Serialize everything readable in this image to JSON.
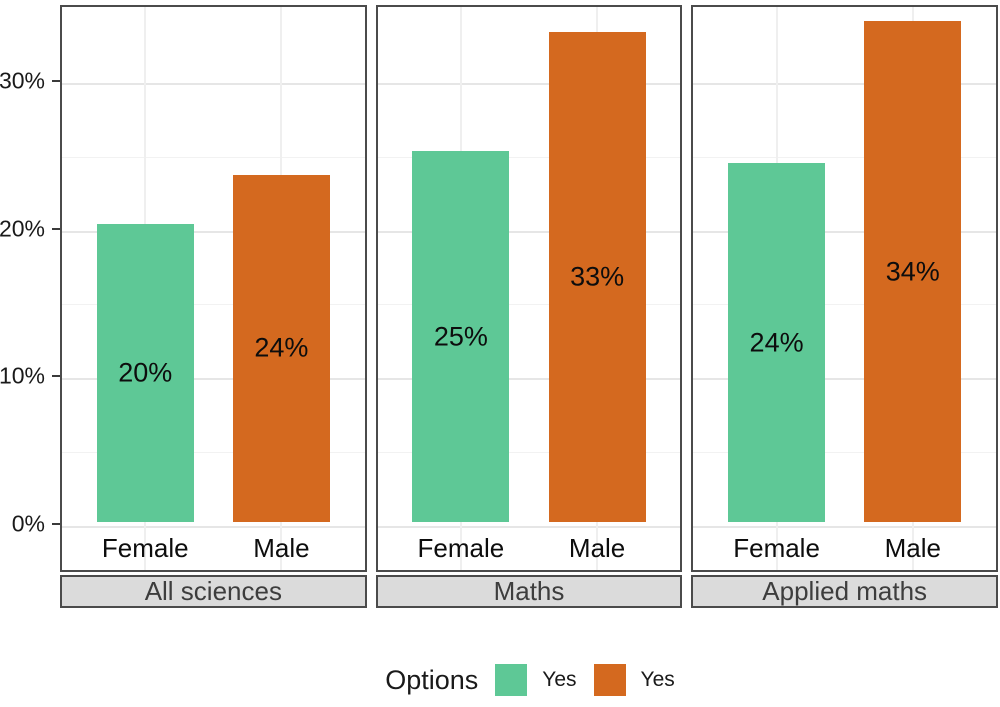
{
  "chart_data": {
    "type": "bar",
    "title": "",
    "categories": [
      "Female",
      "Male"
    ],
    "yticks": [
      {
        "value": 0,
        "label": "0%"
      },
      {
        "value": 10,
        "label": "10%"
      },
      {
        "value": 20,
        "label": "20%"
      },
      {
        "value": 30,
        "label": "30%"
      }
    ],
    "ylim": [
      0,
      35.1
    ],
    "grid": {
      "major_step": 10,
      "minor_step": 5,
      "vertical_at_categories": true
    },
    "facets": [
      {
        "label": "All sciences",
        "bars": [
          {
            "category": "Female",
            "value": 20.2,
            "label": "20%",
            "color": "#5ec896"
          },
          {
            "category": "Male",
            "value": 23.5,
            "label": "24%",
            "color": "#d4691f"
          }
        ]
      },
      {
        "label": "Maths",
        "bars": [
          {
            "category": "Female",
            "value": 25.1,
            "label": "25%",
            "color": "#5ec896"
          },
          {
            "category": "Male",
            "value": 33.2,
            "label": "33%",
            "color": "#d4691f"
          }
        ]
      },
      {
        "label": "Applied maths",
        "bars": [
          {
            "category": "Female",
            "value": 24.3,
            "label": "24%",
            "color": "#5ec896"
          },
          {
            "category": "Male",
            "value": 33.9,
            "label": "34%",
            "color": "#d4691f"
          }
        ]
      }
    ],
    "legend": {
      "title": "Options",
      "position": "bottom",
      "items": [
        {
          "label": "Yes",
          "color": "#5ec896"
        },
        {
          "label": "Yes",
          "color": "#d4691f"
        }
      ]
    },
    "colors": {
      "female_green": "#5ec896",
      "male_orange": "#d4691f",
      "strip_background": "#dbdbdb",
      "panel_border": "#4b4b4b",
      "gridline_major": "#e6e6e6",
      "gridline_minor": "#f2f2f2"
    }
  }
}
